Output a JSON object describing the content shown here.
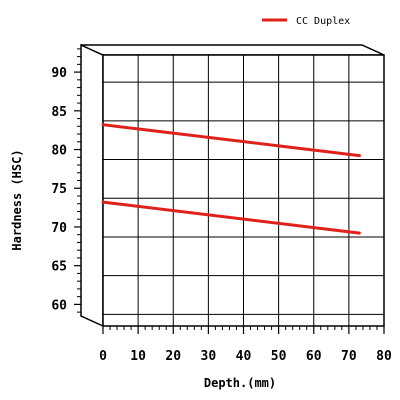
{
  "chart_data": {
    "type": "line",
    "title": "",
    "xlabel": "Depth.(mm)",
    "ylabel": "Hardness (HSC)",
    "xlim": [
      0,
      80
    ],
    "ylim": [
      58.5,
      93.5
    ],
    "x_ticks": [
      0,
      10,
      20,
      30,
      40,
      50,
      60,
      70,
      80
    ],
    "y_ticks": [
      60,
      65,
      70,
      75,
      80,
      85,
      90
    ],
    "grid": true,
    "legend_position": "top-right",
    "legend": [
      "CC Duplex"
    ],
    "series_color": "#e0201b",
    "series": [
      {
        "x": [
          0,
          73
        ],
        "y": [
          84.5,
          80.5
        ]
      },
      {
        "x": [
          0,
          73
        ],
        "y": [
          74.5,
          70.5
        ]
      }
    ]
  }
}
